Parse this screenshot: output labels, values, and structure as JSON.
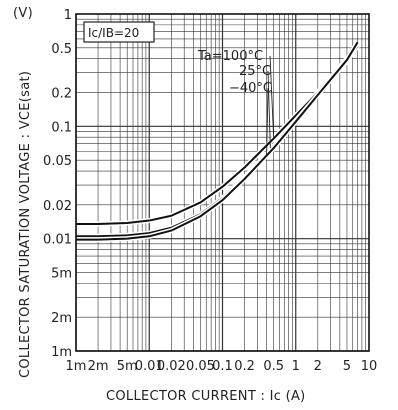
{
  "chart_data": {
    "type": "line",
    "title": "",
    "xlabel": "COLLECTOR  CURRENT : Ic  (A)",
    "ylabel": "COLLECTOR SATURATION VOLTAGE : VCE(sat)",
    "y_unit": "(V)",
    "x_scale": "log",
    "y_scale": "log",
    "xlim": [
      0.001,
      10
    ],
    "ylim": [
      0.001,
      1
    ],
    "x_tick_labels": [
      "1m",
      "2m",
      "5m",
      "0.01",
      "0.02",
      "0.05",
      "0.1",
      "0.2",
      "0.5",
      "1",
      "2",
      "5",
      "10"
    ],
    "y_tick_labels": [
      "1",
      "0.5",
      "0.2",
      "0.1",
      "0.05",
      "0.02",
      "0.01",
      "5m",
      "2m",
      "1m"
    ],
    "grid": true,
    "condition_label": "Ic/IB=20",
    "annotations": [
      "Ta=100°C",
      "25°C",
      "−40°C"
    ],
    "series": [
      {
        "name": "Ta=100°C",
        "x": [
          0.001,
          0.002,
          0.005,
          0.01,
          0.02,
          0.05,
          0.1,
          0.2,
          0.5,
          1,
          2,
          5
        ],
        "y": [
          0.0135,
          0.0135,
          0.0138,
          0.0145,
          0.016,
          0.021,
          0.029,
          0.043,
          0.078,
          0.125,
          0.2,
          0.4
        ]
      },
      {
        "name": "25°C",
        "x": [
          0.001,
          0.002,
          0.005,
          0.01,
          0.02,
          0.05,
          0.1,
          0.2,
          0.5,
          1,
          2,
          5,
          7
        ],
        "y": [
          0.0105,
          0.0105,
          0.0107,
          0.0112,
          0.0125,
          0.0165,
          0.023,
          0.035,
          0.066,
          0.112,
          0.19,
          0.38,
          0.52
        ]
      },
      {
        "name": "−40°C",
        "x": [
          0.001,
          0.002,
          0.005,
          0.01,
          0.02,
          0.05,
          0.1,
          0.2,
          0.5,
          1,
          2,
          5,
          7
        ],
        "y": [
          0.0098,
          0.0098,
          0.01,
          0.0105,
          0.0118,
          0.0158,
          0.022,
          0.034,
          0.064,
          0.11,
          0.19,
          0.39,
          0.56
        ]
      }
    ]
  }
}
